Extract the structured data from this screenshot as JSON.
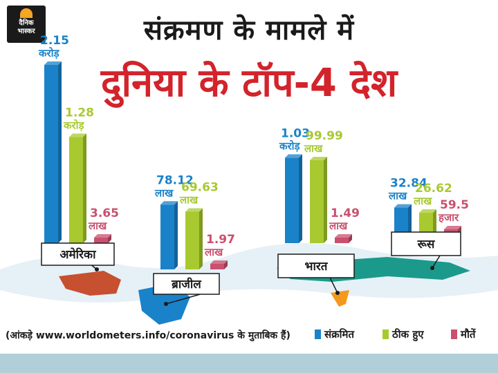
{
  "header": {
    "line1": "संक्रमण के मामले में",
    "line2": "दुनिया के टॉप-4 देश"
  },
  "logo": {
    "text1": "दैनिक",
    "text2": "भास्कर"
  },
  "footer": {
    "source": "(आंकड़े www.worldometers.info/coronavirus के मुताबिक हैं)"
  },
  "colors": {
    "infected": "#1a82c9",
    "recovered": "#a8c930",
    "deaths": "#c9506e",
    "title_red": "#d3232b"
  },
  "chart_data": {
    "type": "bar",
    "title": "संक्रमण के मामले में दुनिया के टॉप-4 देश",
    "categories": [
      "अमेरिका",
      "ब्राजील",
      "भारत",
      "रूस"
    ],
    "series": [
      {
        "name": "संक्रमित",
        "values": [
          21500000,
          7812000,
          10300000,
          3284000
        ]
      },
      {
        "name": "ठीक हुए",
        "values": [
          12800000,
          6963000,
          9999000,
          2662000
        ]
      },
      {
        "name": "मौतें",
        "values": [
          365000,
          197000,
          149000,
          59500
        ]
      }
    ],
    "labels": [
      [
        [
          "2.15",
          "करोड़"
        ],
        [
          "1.28",
          "करोड़"
        ],
        [
          "3.65",
          "लाख"
        ]
      ],
      [
        [
          "78.12",
          "लाख"
        ],
        [
          "69.63",
          "लाख"
        ],
        [
          "1.97",
          "लाख"
        ]
      ],
      [
        [
          "1.03",
          "करोड़"
        ],
        [
          "99.99",
          "लाख"
        ],
        [
          "1.49",
          "लाख"
        ]
      ],
      [
        [
          "32.84",
          "लाख"
        ],
        [
          "26.62",
          "लाख"
        ],
        [
          "59.5",
          "हजार"
        ]
      ]
    ],
    "legend": [
      "संक्रमित",
      "ठीक हुए",
      "मौतें"
    ],
    "legend_position": "bottom-right"
  }
}
